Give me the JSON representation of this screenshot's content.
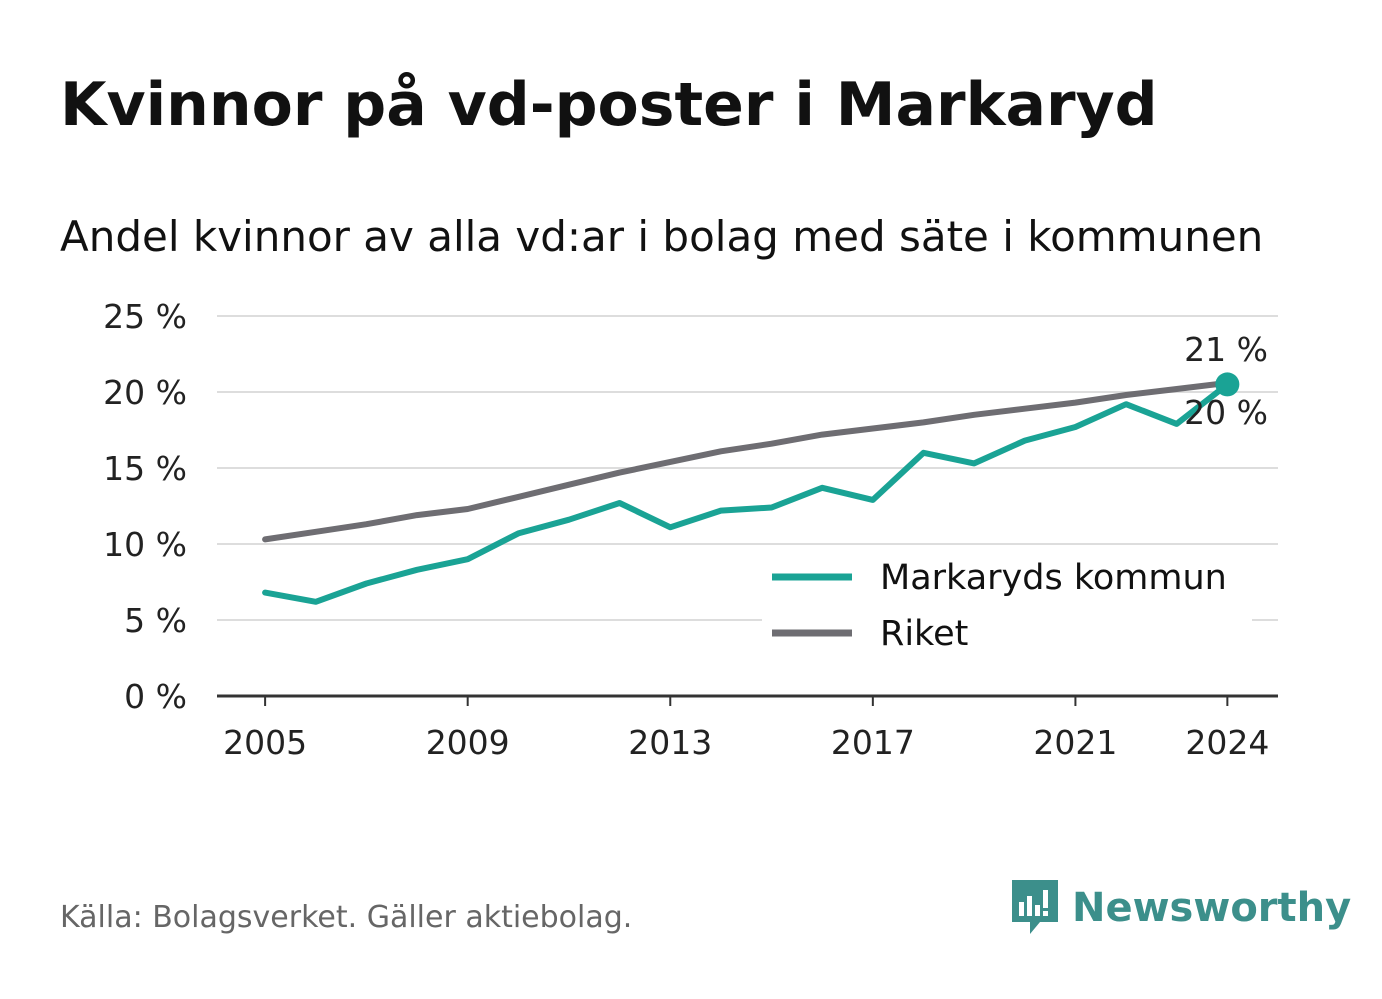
{
  "title": "Kvinnor på vd-poster i Markaryd",
  "subtitle": "Andel kvinnor av alla vd:ar i bolag med säte i kommunen",
  "source": "Källa: Bolagsverket. Gäller aktiebolag.",
  "brand": {
    "name": "Newsworthy",
    "icon": "newsworthy-logo-icon",
    "color": "#3c8f8b"
  },
  "chart_data": {
    "type": "line",
    "x": [
      2005,
      2006,
      2007,
      2008,
      2009,
      2010,
      2011,
      2012,
      2013,
      2014,
      2015,
      2016,
      2017,
      2018,
      2019,
      2020,
      2021,
      2022,
      2023,
      2024
    ],
    "xticks": [
      "2005",
      "2009",
      "2013",
      "2017",
      "2021",
      "2024"
    ],
    "xtick_values": [
      2005,
      2009,
      2013,
      2017,
      2021,
      2024
    ],
    "yticks": [
      "0 %",
      "5 %",
      "10 %",
      "15 %",
      "20 %",
      "25 %"
    ],
    "ytick_values": [
      0,
      5,
      10,
      15,
      20,
      25
    ],
    "ylim": [
      0,
      25
    ],
    "xlim": [
      2004.05,
      2025
    ],
    "grid": true,
    "legend_position": "bottom-right",
    "series": [
      {
        "name": "Markaryds kommun",
        "color": "#1aa395",
        "values": [
          6.8,
          6.2,
          7.4,
          8.3,
          9.0,
          10.7,
          11.6,
          12.7,
          11.1,
          12.2,
          12.4,
          13.7,
          12.9,
          16.0,
          15.3,
          16.8,
          17.7,
          19.2,
          17.9,
          20.5
        ],
        "end_label": "20 %"
      },
      {
        "name": "Riket",
        "color": "#6e6d72",
        "values": [
          10.3,
          10.8,
          11.3,
          11.9,
          12.3,
          13.1,
          13.9,
          14.7,
          15.4,
          16.1,
          16.6,
          17.2,
          17.6,
          18.0,
          18.5,
          18.9,
          19.3,
          19.8,
          20.2,
          20.6
        ],
        "end_label": "21 %"
      }
    ]
  }
}
